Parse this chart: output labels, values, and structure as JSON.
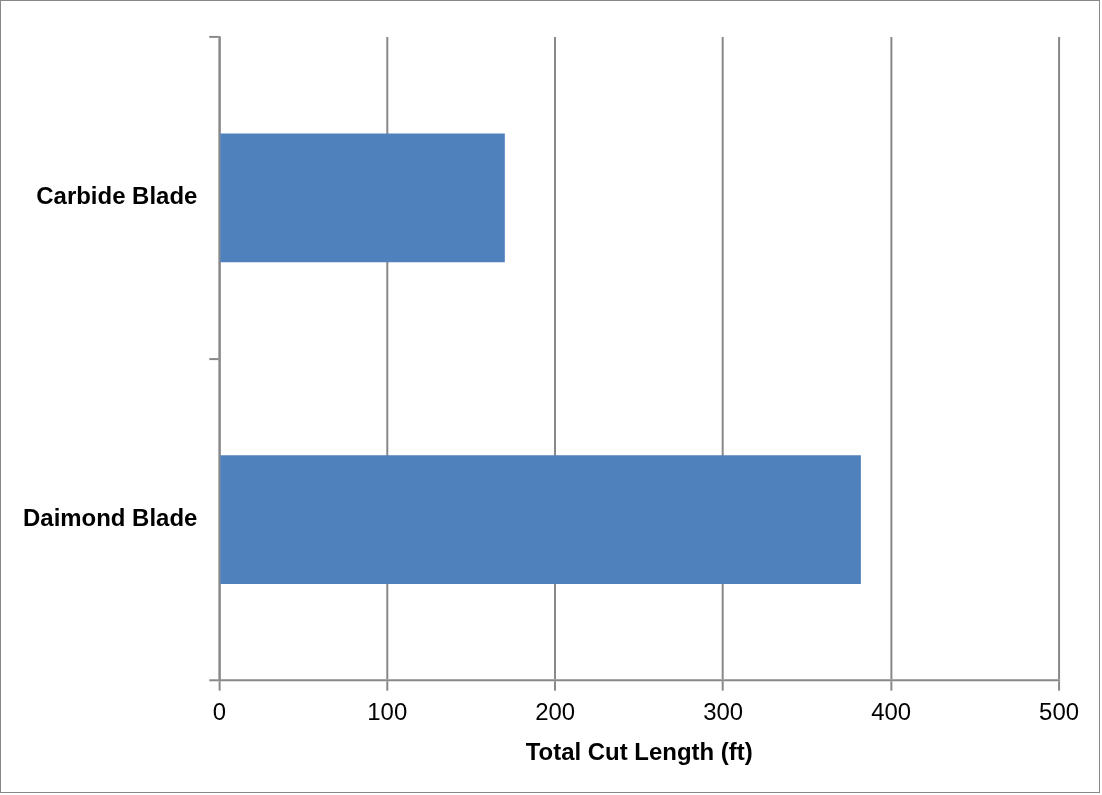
{
  "chart_data": {
    "type": "bar",
    "orientation": "horizontal",
    "xlabel": "Total Cut Length (ft)",
    "categories": [
      "Carbide Blade",
      "Daimond Blade"
    ],
    "values": [
      170,
      382
    ],
    "color": "#4f81bd",
    "xlim": [
      0,
      500
    ],
    "xticks": [
      0,
      100,
      200,
      300,
      400,
      500
    ],
    "grid": "x",
    "legend": false
  }
}
